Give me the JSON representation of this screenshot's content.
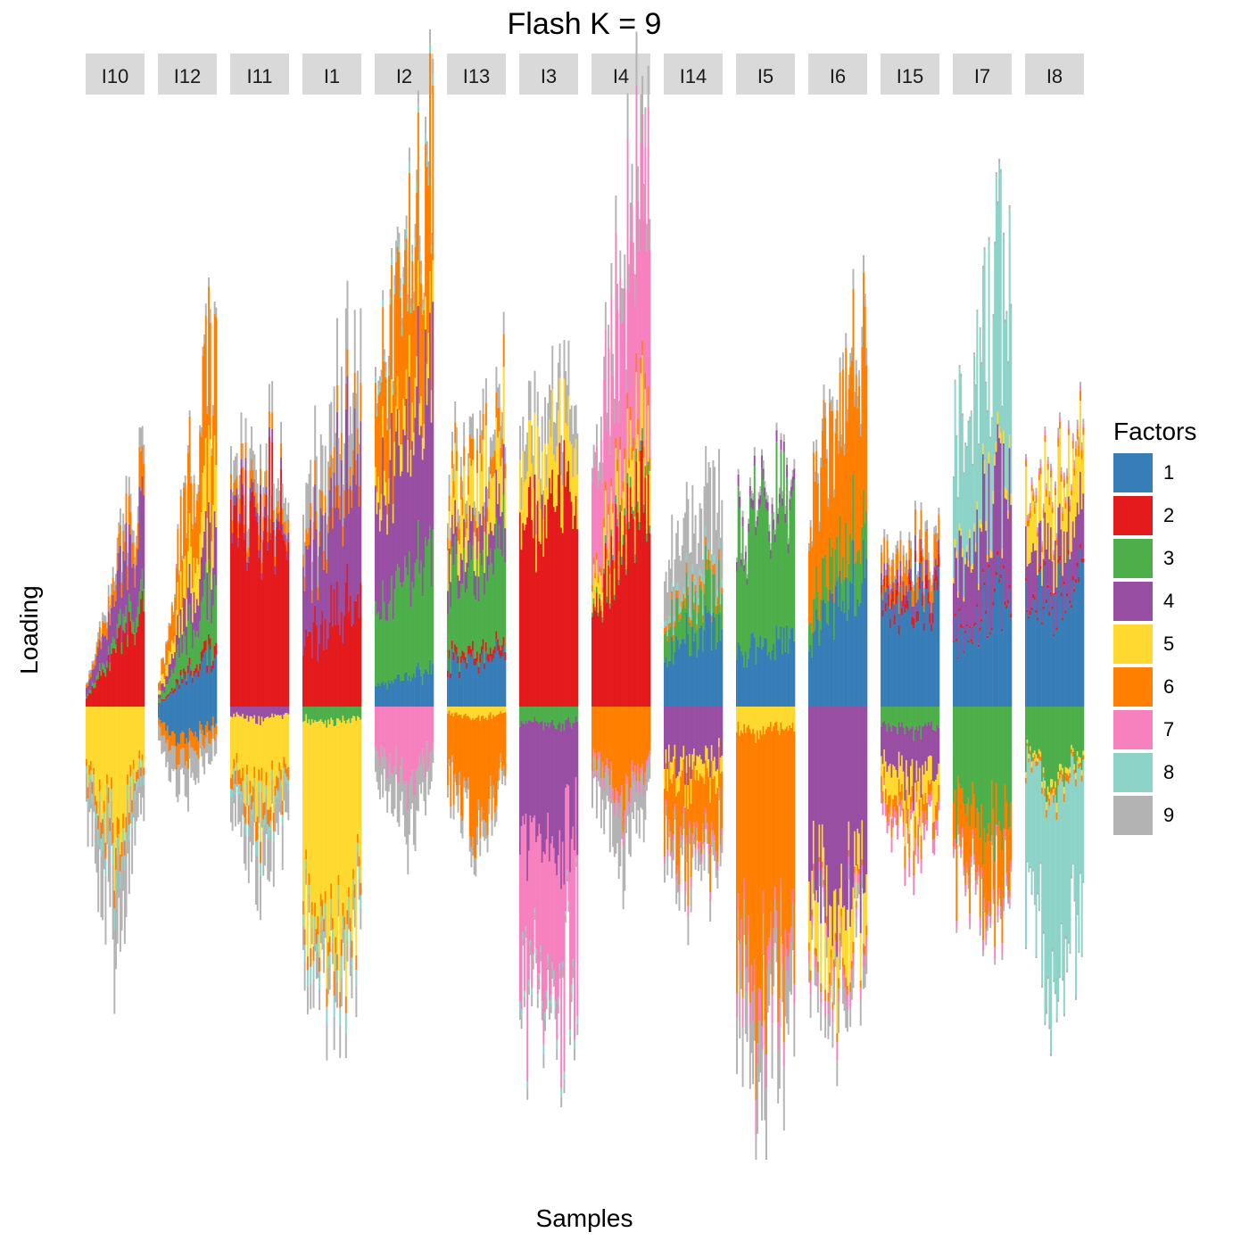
{
  "title": "Flash K = 9",
  "chart_data": {
    "type": "bar",
    "subtype": "stacked-signed-bars-faceted",
    "title": "Flash K = 9",
    "xlabel": "Samples",
    "ylabel": "Loading",
    "grid": false,
    "legend": {
      "title": "Factors",
      "position": "right",
      "entries": [
        "1",
        "2",
        "3",
        "4",
        "5",
        "6",
        "7",
        "8",
        "9"
      ],
      "colors": [
        "#377EB8",
        "#E41A1C",
        "#4DAF4A",
        "#984EA3",
        "#FFD92F",
        "#FF7F00",
        "#F781BF",
        "#8DD3C7",
        "#B3B3B3"
      ]
    },
    "facets": [
      "I10",
      "I12",
      "I11",
      "I1",
      "I2",
      "I13",
      "I3",
      "I4",
      "I14",
      "I5",
      "I6",
      "I15",
      "I7",
      "I8"
    ],
    "factor_profiles": [
      {
        "facet": "I10",
        "positive": [
          0,
          0.25,
          0.05,
          0.2,
          0,
          0.08,
          0,
          0,
          0.05
        ],
        "negative": [
          0,
          0,
          0,
          0,
          0.35,
          0.05,
          0,
          0.05,
          0.2
        ],
        "pos_range": [
          0.05,
          0.6
        ],
        "neg_range": [
          0.05,
          0.55
        ]
      },
      {
        "facet": "I12",
        "positive": [
          0.1,
          0.02,
          0.12,
          0.1,
          0.12,
          0.22,
          0,
          0,
          0.02
        ],
        "negative": [
          0.05,
          0,
          0,
          0,
          0,
          0.03,
          0,
          0,
          0.05
        ],
        "pos_range": [
          0.05,
          0.95
        ],
        "neg_range": [
          0.03,
          0.2
        ]
      },
      {
        "facet": "I11",
        "positive": [
          0,
          0.42,
          0,
          0.02,
          0,
          0.03,
          0,
          0,
          0.05
        ],
        "negative": [
          0,
          0,
          0,
          0.03,
          0.2,
          0.04,
          0,
          0.03,
          0.1
        ],
        "pos_range": [
          0.55,
          0.6
        ],
        "neg_range": [
          0.15,
          0.4
        ]
      },
      {
        "facet": "I1",
        "positive": [
          0,
          0.2,
          0,
          0.25,
          0,
          0.05,
          0,
          0,
          0.12
        ],
        "negative": [
          0,
          0,
          0.03,
          0,
          0.42,
          0.03,
          0,
          0.03,
          0.05
        ],
        "pos_range": [
          0.45,
          0.85
        ],
        "neg_range": [
          0.4,
          0.75
        ]
      },
      {
        "facet": "I2",
        "positive": [
          0.08,
          0,
          0.25,
          0.35,
          0.08,
          0.35,
          0,
          0.02,
          0.03
        ],
        "negative": [
          0,
          0,
          0,
          0,
          0,
          0,
          0.08,
          0,
          0.05
        ],
        "pos_range": [
          0.75,
          1.3
        ],
        "neg_range": [
          0.05,
          0.3
        ]
      },
      {
        "facet": "I13",
        "positive": [
          0.12,
          0.02,
          0.22,
          0.08,
          0.12,
          0.05,
          0,
          0,
          0.05
        ],
        "negative": [
          0,
          0,
          0,
          0,
          0.02,
          0.18,
          0,
          0,
          0.03
        ],
        "pos_range": [
          0.5,
          0.75
        ],
        "neg_range": [
          0.1,
          0.3
        ]
      },
      {
        "facet": "I3",
        "positive": [
          0,
          0.42,
          0,
          0,
          0.12,
          0,
          0,
          0,
          0.08
        ],
        "negative": [
          0,
          0,
          0.05,
          0.35,
          0,
          0,
          0.45,
          0.02,
          0.03
        ],
        "pos_range": [
          0.6,
          0.75
        ],
        "neg_range": [
          0.4,
          0.85
        ]
      },
      {
        "facet": "I4",
        "positive": [
          0,
          0.42,
          0.02,
          0,
          0.12,
          0.03,
          0.45,
          0,
          0.08
        ],
        "negative": [
          0,
          0,
          0,
          0,
          0,
          0.15,
          0.02,
          0,
          0.08
        ],
        "pos_range": [
          0.6,
          1.4
        ],
        "neg_range": [
          0.1,
          0.35
        ]
      },
      {
        "facet": "I14",
        "positive": [
          0.18,
          0,
          0.1,
          0,
          0,
          0.02,
          0,
          0.02,
          0.18
        ],
        "negative": [
          0,
          0,
          0,
          0.15,
          0.05,
          0.18,
          0.02,
          0,
          0.05
        ],
        "pos_range": [
          0.35,
          0.55
        ],
        "neg_range": [
          0.2,
          0.45
        ]
      },
      {
        "facet": "I5",
        "positive": [
          0.18,
          0,
          0.4,
          0.03,
          0,
          0,
          0,
          0,
          0.02
        ],
        "negative": [
          0,
          0,
          0,
          0,
          0.05,
          0.5,
          0.05,
          0,
          0.12
        ],
        "pos_range": [
          0.45,
          0.55
        ],
        "neg_range": [
          0.45,
          0.95
        ]
      },
      {
        "facet": "I6",
        "positive": [
          0.25,
          0,
          0.1,
          0,
          0,
          0.35,
          0,
          0,
          0.03
        ],
        "negative": [
          0,
          0,
          0,
          0.45,
          0.12,
          0.02,
          0.03,
          0,
          0.05
        ],
        "pos_range": [
          0.5,
          0.9
        ],
        "neg_range": [
          0.45,
          0.7
        ]
      },
      {
        "facet": "I15",
        "positive": [
          0.28,
          0.03,
          0,
          0.03,
          0,
          0.06,
          0,
          0,
          0.02
        ],
        "negative": [
          0,
          0,
          0.05,
          0.1,
          0.07,
          0.04,
          0.03,
          0,
          0
        ],
        "pos_range": [
          0.3,
          0.45
        ],
        "neg_range": [
          0.2,
          0.35
        ]
      },
      {
        "facet": "I7",
        "positive": [
          0.32,
          0.01,
          0,
          0.3,
          0.03,
          0,
          0,
          0.55,
          0.01
        ],
        "negative": [
          0,
          0,
          0.25,
          0,
          0,
          0.15,
          0.02,
          0,
          0.01
        ],
        "pos_range": [
          0.65,
          1.1
        ],
        "neg_range": [
          0.3,
          0.5
        ]
      },
      {
        "facet": "I8",
        "positive": [
          0.32,
          0.01,
          0,
          0.15,
          0.15,
          0.02,
          0.01,
          0,
          0.01
        ],
        "negative": [
          0,
          0,
          0.2,
          0,
          0.02,
          0.02,
          0,
          0.55,
          0.01
        ],
        "pos_range": [
          0.45,
          0.65
        ],
        "neg_range": [
          0.3,
          0.7
        ]
      }
    ]
  }
}
